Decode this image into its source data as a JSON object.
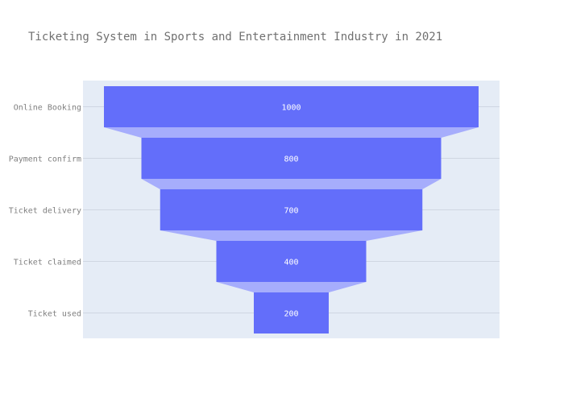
{
  "chart_data": {
    "type": "funnel",
    "title": "Ticketing System in Sports and Entertainment Industry in 2021",
    "stages": [
      "Online Booking",
      "Payment confirm",
      "Ticket delivery",
      "Ticket claimed",
      "Ticket used"
    ],
    "values": [
      1000,
      800,
      700,
      400,
      200
    ],
    "grid": true,
    "colors": {
      "bar": "#636efa",
      "connector": "#a6adfc",
      "plot_bg": "#e5ecf6",
      "grid": "#cfd6e2",
      "tick_text": "#7f7f7f",
      "title_text": "#707070",
      "value_text": "#ffffff"
    }
  }
}
